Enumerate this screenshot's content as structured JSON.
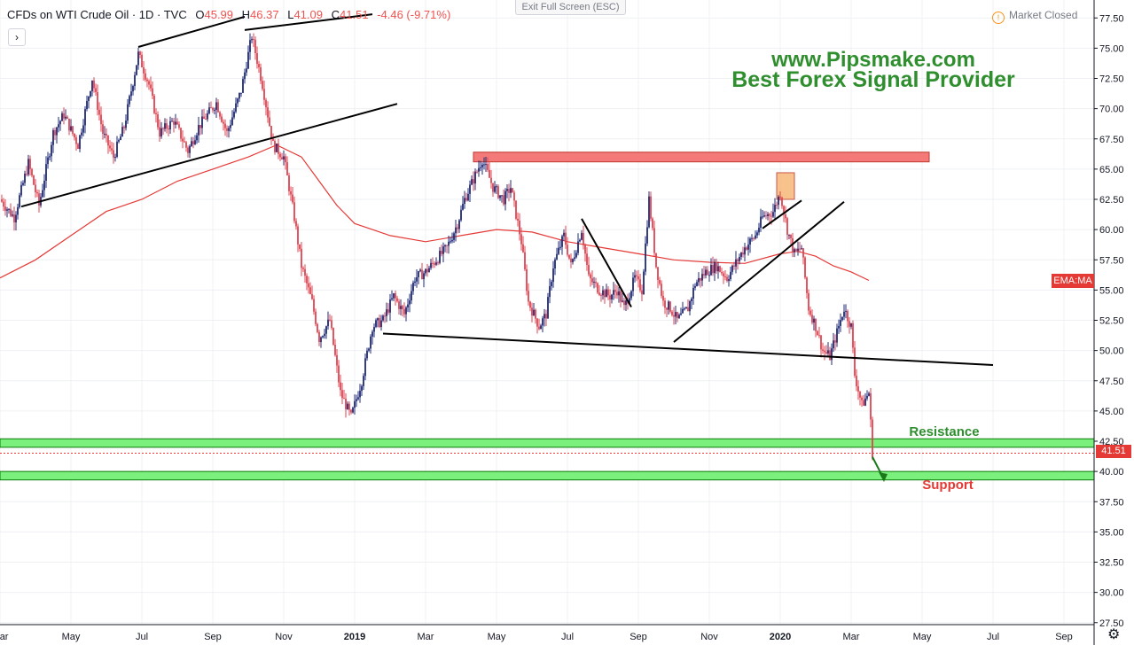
{
  "header": {
    "symbol": "CFDs on WTI Crude Oil · 1D · TVC",
    "open_label": "O",
    "open_value": "45.99",
    "high_label": "H",
    "high_value": "46.37",
    "low_label": "L",
    "low_value": "41.09",
    "close_label": "C",
    "close_value": "41.51",
    "change": "-4.46 (-9.71%)",
    "expand_icon": "chevron-right-icon"
  },
  "exit_fullscreen_label": "Exit Full Screen (ESC)",
  "market_status": {
    "icon": "clock-icon",
    "label": "Market Closed"
  },
  "watermark": {
    "line1": "www.Pipsmake.com",
    "line2": "Best Forex Signal Provider"
  },
  "labels": {
    "resistance": "Resistance",
    "support": "Support",
    "ema_tag": "EMA:MA",
    "last_price": "41.51"
  },
  "settings_icon": "gear-icon",
  "colors": {
    "up": "#1e2a78",
    "down": "#e0434f",
    "ma": "#e53935",
    "zone_green": "#7cf07c",
    "zone_red": "#f47a7a",
    "trendline": "#000000",
    "accent_green": "#2f8f2f"
  },
  "chart_data": {
    "type": "candlestick",
    "instrument": "CFDs on WTI Crude Oil",
    "timeframe": "1D",
    "y_ticks": [
      "77.50",
      "75.00",
      "72.50",
      "70.00",
      "67.50",
      "65.00",
      "62.50",
      "60.00",
      "57.50",
      "55.00",
      "52.50",
      "50.00",
      "47.50",
      "45.00",
      "42.50",
      "40.00",
      "37.50",
      "35.00",
      "32.50",
      "30.00",
      "27.50"
    ],
    "ylim": [
      27.5,
      77.5
    ],
    "x_ticks": [
      {
        "label": "Mar",
        "t": 0.0
      },
      {
        "label": "May",
        "t": 2.0
      },
      {
        "label": "Jul",
        "t": 4.0
      },
      {
        "label": "Sep",
        "t": 6.0
      },
      {
        "label": "Nov",
        "t": 8.0
      },
      {
        "label": "2019",
        "t": 10.0
      },
      {
        "label": "Mar",
        "t": 12.0
      },
      {
        "label": "May",
        "t": 14.0
      },
      {
        "label": "Jul",
        "t": 16.0
      },
      {
        "label": "Sep",
        "t": 18.0
      },
      {
        "label": "Nov",
        "t": 20.0
      },
      {
        "label": "2020",
        "t": 22.0
      },
      {
        "label": "Mar",
        "t": 24.0
      },
      {
        "label": "May",
        "t": 26.0
      },
      {
        "label": "Jul",
        "t": 28.0
      },
      {
        "label": "Sep",
        "t": 30.0
      }
    ],
    "t_unit": "months since Mar 2018",
    "price_path": [
      [
        0.0,
        62.5
      ],
      [
        0.4,
        61.0
      ],
      [
        0.8,
        65.5
      ],
      [
        1.1,
        62.0
      ],
      [
        1.5,
        68.0
      ],
      [
        1.8,
        69.5
      ],
      [
        2.2,
        67.0
      ],
      [
        2.6,
        72.5
      ],
      [
        2.9,
        68.0
      ],
      [
        3.2,
        66.0
      ],
      [
        3.5,
        68.5
      ],
      [
        3.9,
        74.5
      ],
      [
        4.2,
        72.0
      ],
      [
        4.5,
        68.0
      ],
      [
        4.9,
        69.0
      ],
      [
        5.3,
        66.5
      ],
      [
        5.6,
        68.5
      ],
      [
        6.1,
        70.5
      ],
      [
        6.4,
        68.0
      ],
      [
        6.8,
        71.5
      ],
      [
        7.1,
        76.0
      ],
      [
        7.4,
        72.0
      ],
      [
        7.7,
        67.0
      ],
      [
        8.0,
        66.0
      ],
      [
        8.3,
        61.0
      ],
      [
        8.5,
        57.0
      ],
      [
        8.8,
        54.0
      ],
      [
        9.0,
        51.0
      ],
      [
        9.3,
        52.5
      ],
      [
        9.6,
        46.5
      ],
      [
        9.9,
        44.5
      ],
      [
        10.2,
        47.5
      ],
      [
        10.5,
        52.0
      ],
      [
        10.8,
        52.5
      ],
      [
        11.1,
        54.5
      ],
      [
        11.4,
        53.0
      ],
      [
        11.7,
        56.0
      ],
      [
        12.0,
        56.5
      ],
      [
        12.3,
        57.5
      ],
      [
        12.6,
        58.5
      ],
      [
        12.9,
        60.5
      ],
      [
        13.1,
        62.5
      ],
      [
        13.4,
        64.5
      ],
      [
        13.6,
        65.8
      ],
      [
        13.9,
        63.5
      ],
      [
        14.2,
        62.5
      ],
      [
        14.4,
        63.5
      ],
      [
        14.7,
        59.0
      ],
      [
        14.9,
        54.0
      ],
      [
        15.2,
        52.0
      ],
      [
        15.4,
        53.0
      ],
      [
        15.6,
        57.0
      ],
      [
        15.9,
        59.5
      ],
      [
        16.1,
        57.0
      ],
      [
        16.4,
        60.0
      ],
      [
        16.6,
        56.0
      ],
      [
        16.9,
        55.0
      ],
      [
        17.2,
        54.5
      ],
      [
        17.4,
        55.0
      ],
      [
        17.6,
        53.5
      ],
      [
        17.9,
        56.0
      ],
      [
        18.1,
        55.0
      ],
      [
        18.3,
        62.5
      ],
      [
        18.5,
        57.0
      ],
      [
        18.7,
        54.0
      ],
      [
        18.9,
        53.5
      ],
      [
        19.1,
        52.5
      ],
      [
        19.4,
        53.5
      ],
      [
        19.6,
        55.5
      ],
      [
        19.9,
        56.5
      ],
      [
        20.2,
        57.0
      ],
      [
        20.5,
        56.0
      ],
      [
        20.8,
        57.5
      ],
      [
        21.0,
        58.5
      ],
      [
        21.3,
        59.5
      ],
      [
        21.5,
        61.0
      ],
      [
        21.8,
        61.5
      ],
      [
        22.0,
        63.0
      ],
      [
        22.2,
        60.0
      ],
      [
        22.4,
        58.0
      ],
      [
        22.6,
        58.5
      ],
      [
        22.8,
        53.5
      ],
      [
        23.0,
        52.0
      ],
      [
        23.2,
        50.0
      ],
      [
        23.4,
        49.5
      ],
      [
        23.6,
        51.5
      ],
      [
        23.8,
        53.5
      ],
      [
        24.0,
        52.0
      ],
      [
        24.1,
        48.0
      ],
      [
        24.3,
        45.5
      ],
      [
        24.5,
        46.5
      ],
      [
        24.6,
        41.5
      ]
    ],
    "moving_average": [
      [
        0.0,
        56.0
      ],
      [
        1.0,
        57.5
      ],
      [
        2.0,
        59.5
      ],
      [
        3.0,
        61.5
      ],
      [
        4.0,
        62.5
      ],
      [
        5.0,
        64.0
      ],
      [
        6.0,
        65.0
      ],
      [
        7.0,
        66.0
      ],
      [
        7.8,
        67.0
      ],
      [
        8.5,
        66.0
      ],
      [
        9.0,
        64.0
      ],
      [
        9.5,
        62.0
      ],
      [
        10.0,
        60.5
      ],
      [
        10.5,
        60.0
      ],
      [
        11.0,
        59.5
      ],
      [
        12.0,
        59.0
      ],
      [
        13.0,
        59.5
      ],
      [
        14.0,
        60.0
      ],
      [
        15.0,
        59.8
      ],
      [
        16.0,
        59.0
      ],
      [
        17.0,
        58.5
      ],
      [
        18.0,
        58.0
      ],
      [
        19.0,
        57.5
      ],
      [
        20.0,
        57.3
      ],
      [
        21.0,
        57.2
      ],
      [
        22.0,
        58.0
      ],
      [
        22.5,
        58.2
      ],
      [
        23.0,
        57.8
      ],
      [
        23.5,
        57.0
      ],
      [
        24.0,
        56.5
      ],
      [
        24.5,
        55.8
      ]
    ],
    "zones": [
      {
        "name": "resistance",
        "low": 42.0,
        "high": 42.7,
        "color": "#7cf07c"
      },
      {
        "name": "support",
        "low": 39.3,
        "high": 40.0,
        "color": "#7cf07c"
      },
      {
        "name": "supply",
        "t0": 13.35,
        "t1": 26.2,
        "low": 65.6,
        "high": 66.4,
        "color": "#f47a7a"
      },
      {
        "name": "spike",
        "t0": 21.9,
        "t1": 22.4,
        "low": 62.5,
        "high": 64.7,
        "color": "#f7b87a"
      }
    ],
    "trendlines": [
      [
        [
          3.9,
          75.1
        ],
        [
          6.9,
          77.6
        ]
      ],
      [
        [
          6.9,
          76.5
        ],
        [
          10.5,
          77.8
        ]
      ],
      [
        [
          0.6,
          61.9
        ],
        [
          11.2,
          70.4
        ]
      ],
      [
        [
          10.8,
          51.4
        ],
        [
          28.0,
          48.8
        ]
      ],
      [
        [
          19.0,
          50.7
        ],
        [
          23.8,
          62.3
        ]
      ],
      [
        [
          16.4,
          60.9
        ],
        [
          17.8,
          53.6
        ]
      ],
      [
        [
          21.5,
          60.1
        ],
        [
          22.6,
          62.4
        ]
      ]
    ],
    "last_price": 41.51,
    "projection_arrow": [
      [
        24.6,
        41.2
      ],
      [
        24.9,
        39.5
      ]
    ]
  }
}
